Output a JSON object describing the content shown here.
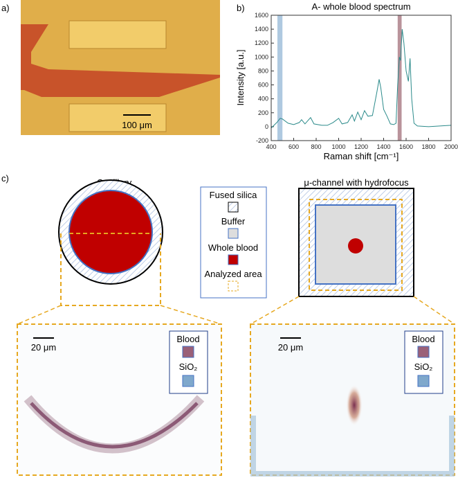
{
  "panel_a": {
    "label": "a)",
    "scale_bar": "100 μm"
  },
  "chart_data": {
    "type": "line",
    "label": "b)",
    "title": "A- whole blood spectrum",
    "xlabel": "Raman shift [cm⁻¹]",
    "ylabel": "Intensity [a.u.]",
    "x": [
      400,
      450,
      480,
      500,
      550,
      600,
      650,
      670,
      700,
      750,
      780,
      850,
      900,
      950,
      1000,
      1030,
      1080,
      1120,
      1140,
      1170,
      1200,
      1230,
      1260,
      1300,
      1340,
      1360,
      1375,
      1400,
      1430,
      1460,
      1490,
      1510,
      1525,
      1540,
      1550,
      1565,
      1580,
      1600,
      1620,
      1635,
      1650,
      1670,
      1700,
      1800,
      1900,
      2000
    ],
    "series": [
      {
        "name": "A- whole blood",
        "color": "#2a8a8a",
        "values": [
          -20,
          60,
          120,
          110,
          50,
          30,
          60,
          100,
          40,
          130,
          40,
          20,
          20,
          60,
          120,
          40,
          60,
          170,
          80,
          210,
          100,
          230,
          150,
          160,
          500,
          680,
          560,
          250,
          150,
          40,
          30,
          50,
          600,
          1000,
          950,
          1400,
          1200,
          800,
          650,
          980,
          400,
          50,
          10,
          0,
          10,
          20
        ]
      }
    ],
    "highlights": [
      {
        "x": [
          455,
          500
        ],
        "color": "#9bbcd8"
      },
      {
        "x": [
          1525,
          1560
        ],
        "color": "#a87882"
      }
    ],
    "xlim": [
      400,
      2000
    ],
    "xticks": [
      400,
      600,
      800,
      1000,
      1200,
      1400,
      1600,
      1800,
      2000
    ],
    "ylim": [
      -200,
      1600
    ],
    "yticks": [
      -200,
      0,
      200,
      400,
      600,
      800,
      1000,
      1200,
      1400,
      1600
    ]
  },
  "panel_c": {
    "label": "c)",
    "capillary_title": "Capillary",
    "channel_title": "μ-channel with hydrofocus",
    "legend": [
      "Fused silica",
      "Buffer",
      "Whole blood",
      "Analyzed area"
    ],
    "left_image": {
      "scale_bar": "20 μm",
      "legend": [
        "Blood",
        "SiO₂"
      ]
    },
    "right_image": {
      "scale_bar": "20 μm",
      "legend": [
        "Blood",
        "SiO₂"
      ]
    }
  }
}
